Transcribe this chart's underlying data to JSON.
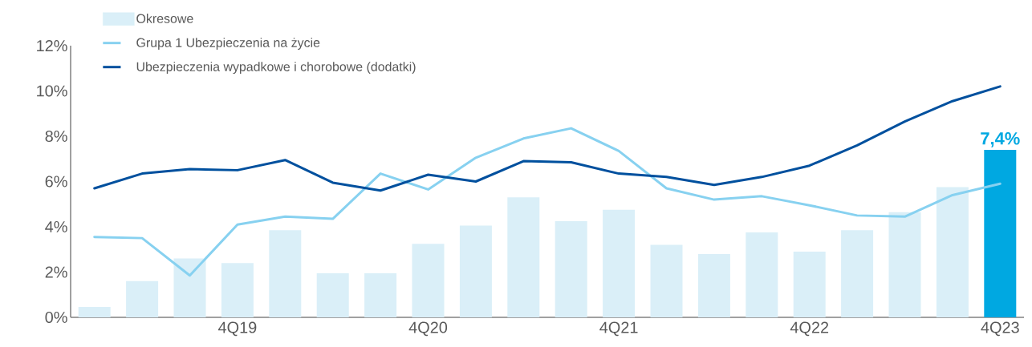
{
  "chart_data": {
    "type": "bar",
    "categories": [
      null,
      null,
      null,
      "4Q19",
      null,
      null,
      null,
      "4Q20",
      null,
      null,
      null,
      "4Q21",
      null,
      null,
      null,
      "4Q22",
      null,
      null,
      null,
      "4Q23"
    ],
    "series": [
      {
        "name": "Okresowe",
        "colors": [
          "#daeff8",
          "#daeff8",
          "#daeff8",
          "#daeff8",
          "#daeff8",
          "#daeff8",
          "#daeff8",
          "#daeff8",
          "#daeff8",
          "#daeff8",
          "#daeff8",
          "#daeff8",
          "#daeff8",
          "#daeff8",
          "#daeff8",
          "#daeff8",
          "#daeff8",
          "#daeff8",
          "#daeff8",
          "#00a8e1"
        ],
        "values": [
          0.46,
          1.6,
          2.6,
          2.4,
          3.85,
          1.95,
          1.95,
          3.25,
          4.05,
          5.3,
          4.25,
          4.75,
          3.2,
          2.8,
          3.75,
          2.9,
          3.85,
          4.65,
          5.75,
          7.4
        ],
        "value_labels": [
          null,
          null,
          null,
          null,
          null,
          null,
          null,
          null,
          null,
          null,
          null,
          null,
          null,
          null,
          null,
          null,
          null,
          null,
          null,
          "7,4%"
        ]
      },
      {
        "type": "line",
        "name": "Grupa 1 Ubezpieczenia na życie",
        "color": "#87d1f0",
        "values": [
          3.55,
          3.5,
          1.85,
          4.1,
          4.45,
          4.35,
          6.35,
          5.65,
          7.05,
          7.9,
          8.35,
          7.35,
          5.7,
          5.2,
          5.35,
          4.95,
          4.5,
          4.45,
          5.4,
          5.9
        ]
      },
      {
        "type": "line",
        "name": "Ubezpieczenia wypadkowe i chorobowe (dodatki)",
        "color": "#00509e",
        "values": [
          5.7,
          6.35,
          6.55,
          6.5,
          6.95,
          5.95,
          5.6,
          6.3,
          6.0,
          6.9,
          6.85,
          6.35,
          6.2,
          5.85,
          6.2,
          6.7,
          7.6,
          8.65,
          9.55,
          10.2
        ]
      }
    ],
    "ylim": [
      0,
      12
    ],
    "yticks": [
      {
        "value": 0,
        "label": "0%"
      },
      {
        "value": 2,
        "label": "2%"
      },
      {
        "value": 4,
        "label": "4%"
      },
      {
        "value": 6,
        "label": "6%"
      },
      {
        "value": 8,
        "label": "8%"
      },
      {
        "value": 10,
        "label": "10%"
      },
      {
        "value": 12,
        "label": "12%"
      }
    ],
    "legend": "top left",
    "grid": false
  }
}
